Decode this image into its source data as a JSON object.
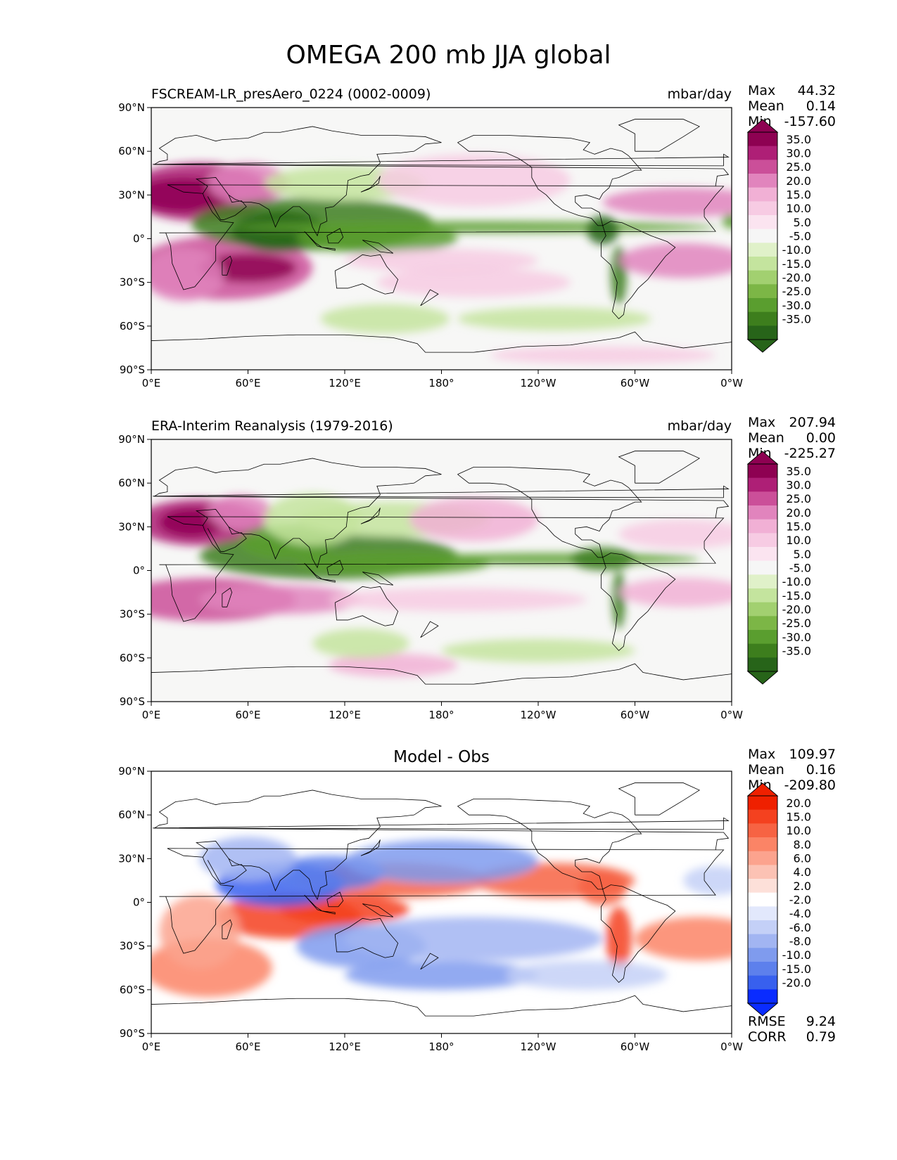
{
  "title": "OMEGA 200 mb JJA global",
  "colors": {
    "ocean": "#f7f7f6",
    "coast": "#000000",
    "piyg": [
      "#276419",
      "#3d7e1d",
      "#5a9e2f",
      "#7cb646",
      "#a2d070",
      "#c4e49e",
      "#e0f1c9",
      "#f6f6f6",
      "#fbe4f0",
      "#f7cbe3",
      "#f1b0d5",
      "#e184bd",
      "#cb4f99",
      "#ae1f76",
      "#8e0152"
    ],
    "bwr": [
      "#0a2cff",
      "#3860ee",
      "#5d80ec",
      "#7f9bee",
      "#a2b5f2",
      "#c4d0f7",
      "#e2e8fc",
      "#ffffff",
      "#fde0d9",
      "#fcc2b4",
      "#fca38e",
      "#fb8466",
      "#f76343",
      "#f4411f",
      "#ef2000"
    ]
  },
  "chart_data": [
    {
      "type": "heatmap",
      "panel": "test",
      "title_left": "FSCREAM-LR_presAero_0224 (0002-0009)",
      "title_right": "mbar/day",
      "stats": [
        {
          "label": "Max",
          "value": "44.32"
        },
        {
          "label": "Mean",
          "value": "0.14"
        },
        {
          "label": "Min",
          "value": "-157.60"
        }
      ],
      "x_ticks": [
        "0°E",
        "60°E",
        "120°E",
        "180°",
        "120°W",
        "60°W",
        "0°W"
      ],
      "y_ticks": [
        "90°N",
        "60°N",
        "30°N",
        "0°",
        "30°S",
        "60°S",
        "90°S"
      ],
      "colorbar_labels": [
        "35.0",
        "30.0",
        "25.0",
        "20.0",
        "15.0",
        "10.0",
        "5.0",
        "-5.0",
        "-10.0",
        "-15.0",
        "-20.0",
        "-25.0",
        "-30.0",
        "-35.0"
      ],
      "colormap": "piyg"
    },
    {
      "type": "heatmap",
      "panel": "reference",
      "title_left": "ERA-Interim Reanalysis (1979-2016)",
      "title_right": "mbar/day",
      "stats": [
        {
          "label": "Max",
          "value": "207.94"
        },
        {
          "label": "Mean",
          "value": "0.00"
        },
        {
          "label": "Min",
          "value": "-225.27"
        }
      ],
      "x_ticks": [
        "0°E",
        "60°E",
        "120°E",
        "180°",
        "120°W",
        "60°W",
        "0°W"
      ],
      "y_ticks": [
        "90°N",
        "60°N",
        "30°N",
        "0°",
        "30°S",
        "60°S",
        "90°S"
      ],
      "colorbar_labels": [
        "35.0",
        "30.0",
        "25.0",
        "20.0",
        "15.0",
        "10.0",
        "5.0",
        "-5.0",
        "-10.0",
        "-15.0",
        "-20.0",
        "-25.0",
        "-30.0",
        "-35.0"
      ],
      "colormap": "piyg"
    },
    {
      "type": "heatmap",
      "panel": "difference",
      "title_center": "Model - Obs",
      "stats": [
        {
          "label": "Max",
          "value": "109.97"
        },
        {
          "label": "Mean",
          "value": "0.16"
        },
        {
          "label": "Min",
          "value": "-209.80"
        }
      ],
      "metrics": [
        {
          "label": "RMSE",
          "value": "9.24"
        },
        {
          "label": "CORR",
          "value": "0.79"
        }
      ],
      "x_ticks": [
        "0°E",
        "60°E",
        "120°E",
        "180°",
        "120°W",
        "60°W",
        "0°W"
      ],
      "y_ticks": [
        "90°N",
        "60°N",
        "30°N",
        "0°",
        "30°S",
        "60°S",
        "90°S"
      ],
      "colorbar_labels": [
        "20.0",
        "15.0",
        "10.0",
        "8.0",
        "6.0",
        "4.0",
        "2.0",
        "-2.0",
        "-4.0",
        "-6.0",
        "-8.0",
        "-10.0",
        "-15.0",
        "-20.0"
      ],
      "colormap": "bwr"
    }
  ]
}
